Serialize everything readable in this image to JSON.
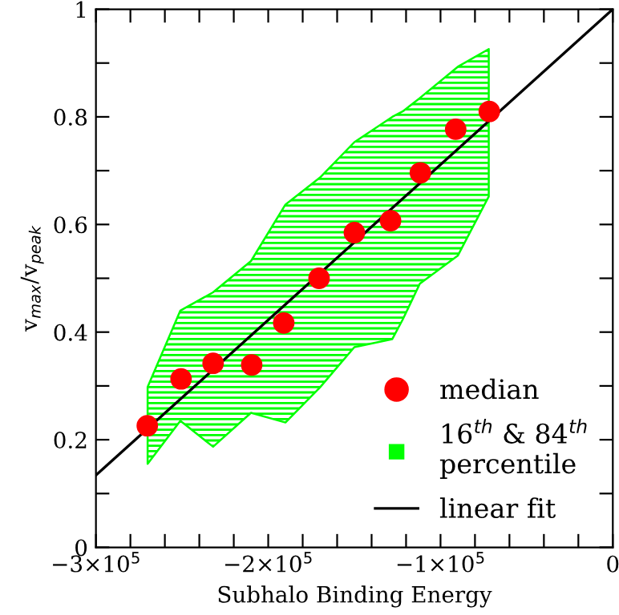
{
  "chart_data": {
    "type": "scatter",
    "xlabel": "Subhalo Binding Energy",
    "ylabel": "v$_{max}$/v$_{peak}$",
    "xlim": [
      -300000,
      0
    ],
    "ylim": [
      0,
      1
    ],
    "xticks": [
      {
        "value": -300000,
        "label": "−3×10$^{5}$"
      },
      {
        "value": -280000,
        "label": null
      },
      {
        "value": -260000,
        "label": null
      },
      {
        "value": -240000,
        "label": null
      },
      {
        "value": -220000,
        "label": null
      },
      {
        "value": -200000,
        "label": "−2×10$^{5}$"
      },
      {
        "value": -180000,
        "label": null
      },
      {
        "value": -160000,
        "label": null
      },
      {
        "value": -140000,
        "label": null
      },
      {
        "value": -120000,
        "label": null
      },
      {
        "value": -100000,
        "label": "−1×10$^{5}$"
      },
      {
        "value": -80000,
        "label": null
      },
      {
        "value": -60000,
        "label": null
      },
      {
        "value": -40000,
        "label": null
      },
      {
        "value": -20000,
        "label": null
      },
      0
    ],
    "yticks": [
      0,
      {
        "value": 0.1,
        "label": null
      },
      0.2,
      {
        "value": 0.3,
        "label": null
      },
      0.4,
      {
        "value": 0.5,
        "label": null
      },
      0.6,
      {
        "value": 0.7,
        "label": null
      },
      0.8,
      {
        "value": 0.9,
        "label": null
      },
      1
    ],
    "grid": false,
    "legend": "bottom right",
    "series": [
      {
        "name": "median",
        "color": "#ff0000",
        "marker": "circle",
        "x": [
          -270200,
          -250600,
          -232000,
          -209600,
          -191000,
          -170500,
          -150000,
          -129000,
          -111700,
          -91200,
          -71700
        ],
        "values": [
          0.226,
          0.313,
          0.342,
          0.339,
          0.417,
          0.5,
          0.585,
          0.607,
          0.696,
          0.777,
          0.81
        ]
      },
      {
        "name": "16$^{th}$ & 84$^{th}$\npercentile",
        "type": "area",
        "color": "#00ff00",
        "x": [
          -270000,
          -251000,
          -232000,
          -210000,
          -190000,
          -170000,
          -150000,
          -128000,
          -122000,
          -112000,
          -90000,
          -72000
        ],
        "values": [
          null,
          null,
          null,
          null,
          null,
          null,
          null,
          null,
          null,
          null,
          null,
          null
        ],
        "lower": [
          0.155,
          0.235,
          0.187,
          0.25,
          0.232,
          0.297,
          0.372,
          0.387,
          0.423,
          0.49,
          0.542,
          0.652
        ],
        "upper": [
          0.298,
          0.44,
          0.474,
          0.532,
          0.637,
          0.687,
          0.753,
          0.8,
          0.81,
          0.835,
          0.893,
          0.926
        ]
      },
      {
        "name": "linear fit",
        "type": "line",
        "color": "#000000",
        "line_style": "solid",
        "x": [
          -300000,
          0
        ],
        "values": [
          0.134,
          1.0
        ]
      }
    ]
  }
}
